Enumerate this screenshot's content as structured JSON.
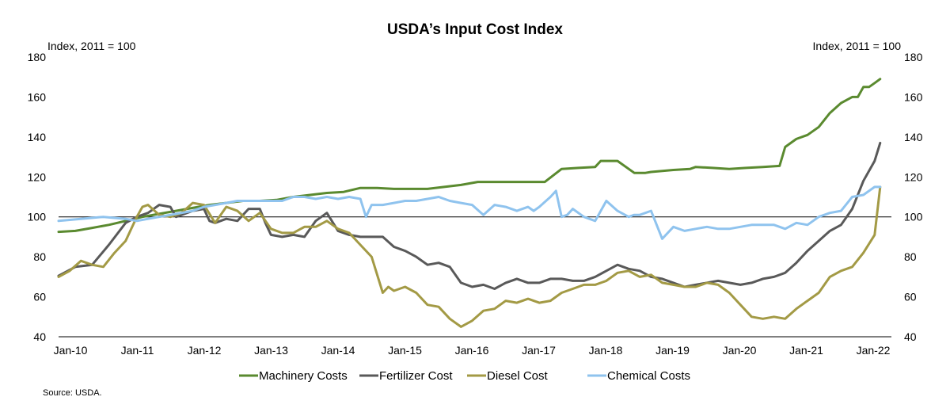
{
  "chart_data": {
    "type": "line",
    "title": "USDA’s Input Cost Index",
    "ylabel_left": "Index,  2011 = 100",
    "ylabel_right": "Index,  2011 = 100",
    "xlabel": "",
    "ylim": [
      40,
      180
    ],
    "yticks": [
      40,
      60,
      80,
      100,
      120,
      140,
      160,
      180
    ],
    "ytick_labels": [
      "40",
      "60",
      "80",
      "100",
      "120",
      "140",
      "160",
      "180"
    ],
    "x_tick_labels": [
      "Jan-10",
      "Jan-11",
      "Jan-12",
      "Jan-13",
      "Jan-14",
      "Jan-15",
      "Jan-16",
      "Jan-17",
      "Jan-18",
      "Jan-19",
      "Jan-20",
      "Jan-21",
      "Jan-22"
    ],
    "x_unit": "months since Jan-10",
    "x_range": [
      0,
      147
    ],
    "reference_line": 100,
    "grid": false,
    "legend_position": "bottom",
    "source": "Source: USDA.",
    "series": [
      {
        "name": "Machinery Costs",
        "color": "#5a8a2f",
        "x": [
          0,
          3,
          6,
          9,
          12,
          15,
          18,
          21,
          24,
          27,
          30,
          33,
          36,
          39,
          42,
          45,
          48,
          51,
          54,
          57,
          60,
          63,
          66,
          69,
          72,
          75,
          78,
          81,
          84,
          87,
          90,
          93,
          96,
          97,
          100,
          103,
          105,
          106,
          108,
          110,
          113,
          114,
          117,
          120,
          123,
          126,
          129,
          130,
          131,
          132,
          134,
          136,
          138,
          140,
          142,
          143,
          144,
          145,
          146,
          147
        ],
        "values": [
          92.5,
          93,
          94.5,
          96,
          98,
          100,
          101.5,
          103,
          104.5,
          106,
          107,
          108,
          108,
          108.5,
          110,
          111,
          112,
          112.5,
          114.5,
          114.5,
          114,
          114,
          114,
          115,
          116,
          117.5,
          117.5,
          117.5,
          117.5,
          117.5,
          124,
          124.5,
          125,
          128,
          128,
          122,
          122,
          122.5,
          123,
          123.5,
          124,
          125,
          124.5,
          124,
          124.5,
          125,
          125.5,
          135,
          137,
          139,
          141,
          145,
          152,
          157,
          160,
          160,
          165,
          165,
          167,
          169
        ]
      },
      {
        "name": "Fertilizer Cost",
        "color": "#595959",
        "x": [
          0,
          3,
          6,
          9,
          12,
          14,
          16,
          18,
          20,
          21,
          22,
          24,
          26,
          27,
          28,
          30,
          32,
          34,
          36,
          37,
          38,
          40,
          42,
          44,
          46,
          48,
          50,
          52,
          54,
          56,
          58,
          60,
          62,
          64,
          66,
          68,
          70,
          72,
          74,
          76,
          78,
          80,
          82,
          84,
          86,
          88,
          90,
          92,
          94,
          96,
          98,
          100,
          102,
          104,
          106,
          108,
          110,
          112,
          114,
          116,
          118,
          120,
          122,
          124,
          126,
          128,
          130,
          132,
          134,
          136,
          138,
          140,
          142,
          144,
          146,
          147
        ],
        "values": [
          70.5,
          75,
          76,
          86,
          97,
          100,
          102,
          106,
          105,
          100,
          101,
          103,
          104,
          98,
          97,
          99,
          98,
          104,
          104,
          97,
          91,
          90,
          91,
          90,
          98,
          102,
          93,
          91,
          90,
          90,
          90,
          85,
          83,
          80,
          76,
          77,
          75,
          67,
          65,
          66,
          64,
          67,
          69,
          67,
          67,
          69,
          69,
          68,
          68,
          70,
          73,
          76,
          74,
          73,
          70,
          69,
          67,
          65,
          66,
          67,
          68,
          67,
          66,
          67,
          69,
          70,
          72,
          77,
          83,
          88,
          93,
          96,
          104,
          118,
          128,
          137
        ]
      },
      {
        "name": "Diesel Cost",
        "color": "#a39a45",
        "x": [
          0,
          2,
          4,
          6,
          8,
          10,
          12,
          14,
          15,
          16,
          18,
          20,
          22,
          24,
          26,
          28,
          30,
          32,
          34,
          36,
          38,
          40,
          42,
          44,
          46,
          48,
          50,
          52,
          54,
          56,
          58,
          59,
          60,
          62,
          64,
          66,
          68,
          70,
          72,
          74,
          76,
          78,
          80,
          82,
          84,
          86,
          88,
          90,
          92,
          94,
          96,
          98,
          100,
          102,
          104,
          106,
          108,
          110,
          112,
          114,
          116,
          118,
          120,
          122,
          124,
          126,
          128,
          130,
          132,
          134,
          136,
          138,
          140,
          142,
          144,
          146,
          147
        ],
        "values": [
          70,
          73,
          78,
          76,
          75,
          82,
          88,
          100,
          105,
          106,
          101,
          100,
          102,
          107,
          106,
          97,
          105,
          103,
          98,
          102,
          94,
          92,
          92,
          95,
          95,
          98,
          94,
          92,
          86,
          80,
          62,
          65,
          63,
          65,
          62,
          56,
          55,
          49,
          45,
          48,
          53,
          54,
          58,
          57,
          59,
          57,
          58,
          62,
          64,
          66,
          66,
          68,
          72,
          73,
          70,
          71,
          67,
          66,
          65,
          65,
          67,
          66,
          62,
          56,
          50,
          49,
          50,
          49,
          54,
          58,
          62,
          70,
          73,
          75,
          82,
          91,
          115
        ]
      },
      {
        "name": "Chemical Costs",
        "color": "#8fc3ee",
        "x": [
          0,
          4,
          8,
          12,
          14,
          16,
          18,
          20,
          22,
          24,
          26,
          28,
          30,
          32,
          34,
          36,
          38,
          40,
          42,
          44,
          46,
          48,
          50,
          52,
          54,
          55,
          56,
          58,
          60,
          62,
          64,
          66,
          68,
          70,
          72,
          74,
          76,
          78,
          80,
          82,
          84,
          85,
          86,
          88,
          89,
          90,
          91,
          92,
          94,
          96,
          98,
          100,
          102,
          103,
          104,
          106,
          108,
          110,
          112,
          114,
          116,
          118,
          120,
          122,
          124,
          126,
          128,
          130,
          132,
          134,
          136,
          138,
          140,
          142,
          144,
          146,
          147
        ],
        "values": [
          98,
          99,
          100,
          99,
          98,
          99,
          100,
          101,
          102,
          103,
          105,
          106,
          107,
          108,
          108,
          108,
          108,
          108,
          110,
          110,
          109,
          110,
          109,
          110,
          109,
          100,
          106,
          106,
          107,
          108,
          108,
          109,
          110,
          108,
          107,
          106,
          101,
          106,
          105,
          103,
          105,
          103,
          105,
          110,
          113,
          100,
          101,
          104,
          100,
          98,
          108,
          103,
          100,
          101,
          101,
          103,
          89,
          95,
          93,
          94,
          95,
          94,
          94,
          95,
          96,
          96,
          96,
          94,
          97,
          96,
          100,
          102,
          103,
          110,
          111,
          115,
          115
        ]
      }
    ]
  }
}
